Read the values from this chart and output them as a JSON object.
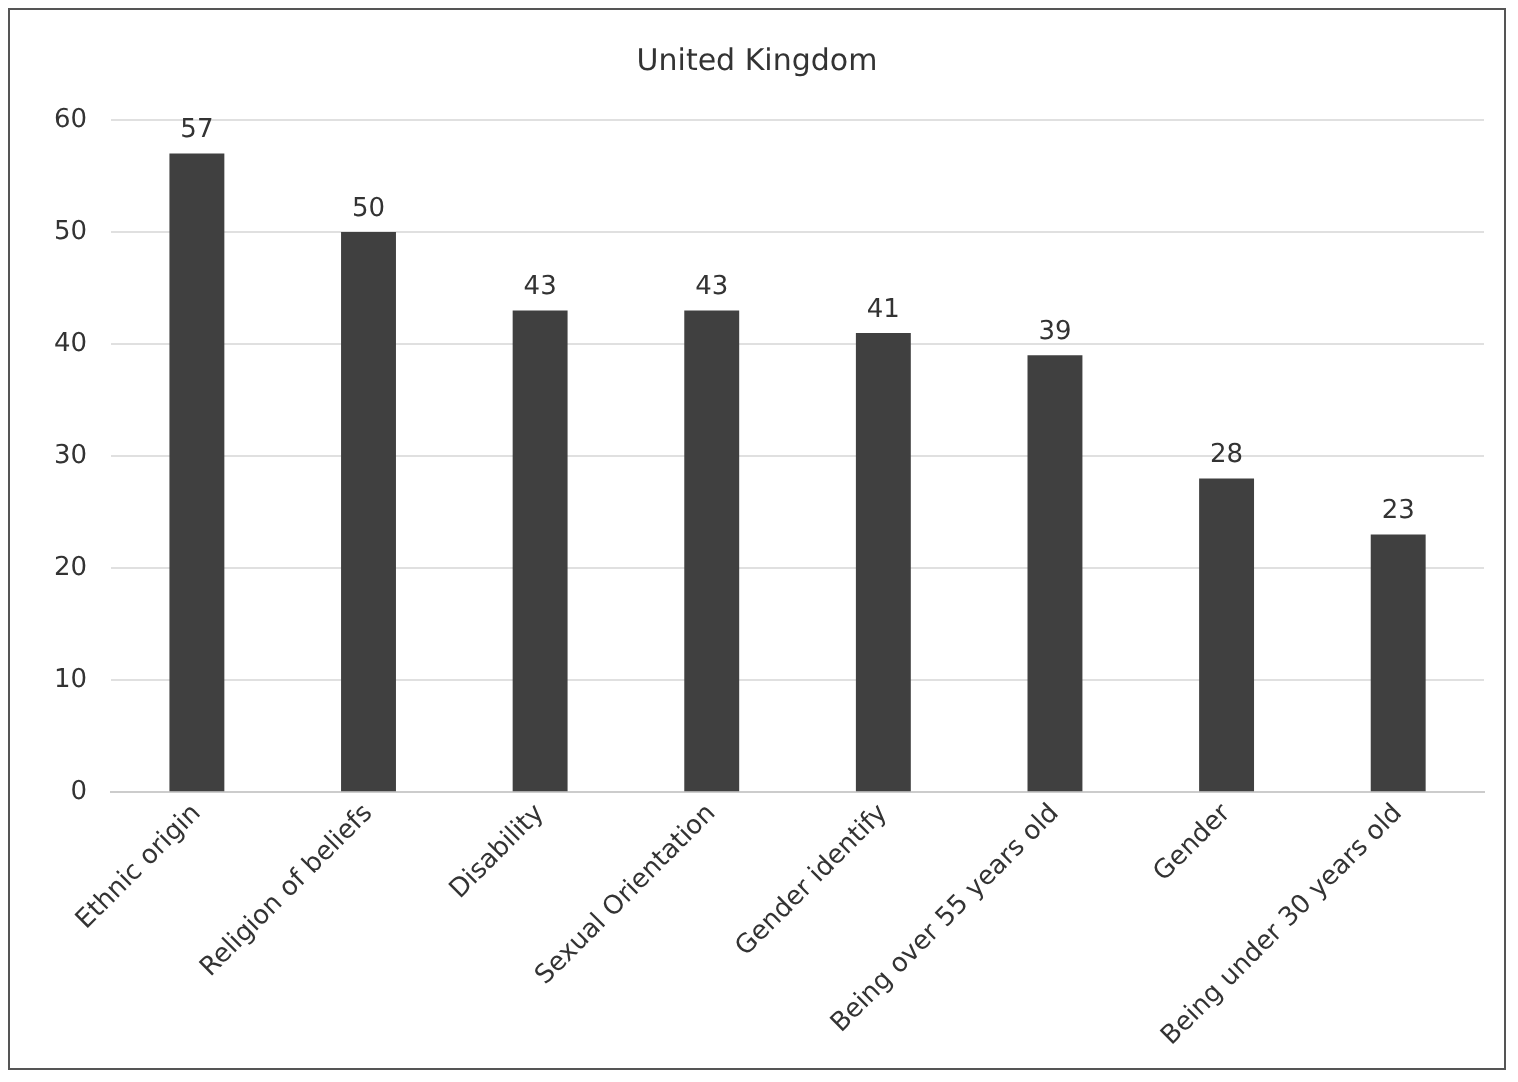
{
  "chart_data": {
    "type": "bar",
    "title": "United Kingdom",
    "categories": [
      "Ethnic origin",
      "Religion of beliefs",
      "Disability",
      "Sexual Orientation",
      "Gender identify",
      "Being over 55 years old",
      "Gender",
      "Being under 30 years old"
    ],
    "values": [
      57,
      50,
      43,
      43,
      41,
      39,
      28,
      23
    ],
    "color": "#404040",
    "ylim": [
      0,
      60
    ],
    "yticks": [
      0,
      10,
      20,
      30,
      40,
      50,
      60
    ],
    "grid": "y",
    "data_labels": true,
    "legend": false
  }
}
